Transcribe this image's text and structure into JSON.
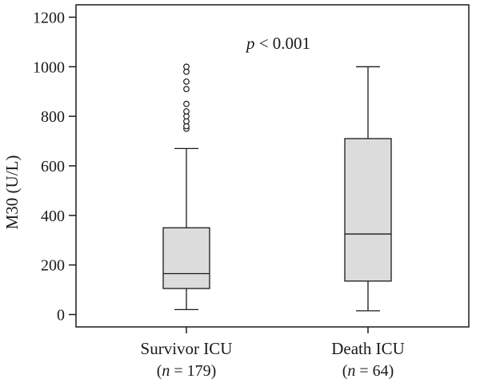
{
  "chart_data": {
    "type": "boxplot",
    "ylabel": "M30 (U/L)",
    "ylim": [
      -50,
      1250
    ],
    "yticks": [
      0,
      200,
      400,
      600,
      800,
      1000,
      1200
    ],
    "ytick_labels": [
      "0",
      "200",
      "400",
      "600",
      "800",
      "1000",
      "1200"
    ],
    "annotation": {
      "italic": "p",
      "rest": " < 0.001"
    },
    "box_fill": "#dcdcdc",
    "line_color": "#1a1a1a",
    "groups": [
      {
        "name": "Survivor ICU",
        "n_prefix": "(",
        "n_symbol": "n",
        "n_suffix": " = 179)",
        "whisker_low": 20,
        "q1": 105,
        "median": 165,
        "q3": 350,
        "whisker_high": 670,
        "outliers": [
          750,
          760,
          780,
          800,
          820,
          850,
          910,
          940,
          980,
          1000
        ]
      },
      {
        "name": "Death ICU",
        "n_prefix": "(",
        "n_symbol": "n",
        "n_suffix": " = 64)",
        "whisker_low": 15,
        "q1": 135,
        "median": 325,
        "q3": 710,
        "whisker_high": 1000,
        "outliers": []
      }
    ]
  }
}
